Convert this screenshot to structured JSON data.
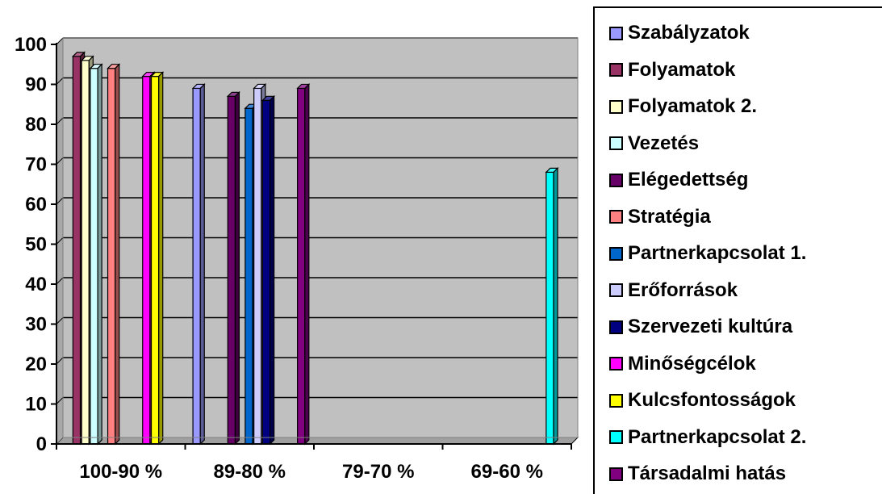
{
  "chart_data": {
    "type": "bar",
    "categories": [
      "100-90 %",
      "89-80 %",
      "79-70 %",
      "69-60 %"
    ],
    "ylim": [
      0,
      100
    ],
    "yticks": [
      0,
      10,
      20,
      30,
      40,
      50,
      60,
      70,
      80,
      90,
      100
    ],
    "grid": true,
    "legend_position": "right",
    "plot_background": "#c0c0c0",
    "series": [
      {
        "name": "Szabályzatok",
        "color": "#9999ff",
        "values": [
          null,
          89,
          null,
          null
        ]
      },
      {
        "name": "Folyamatok",
        "color": "#993366",
        "values": [
          97,
          null,
          null,
          null
        ]
      },
      {
        "name": "Folyamatok 2.",
        "color": "#ffffcc",
        "values": [
          96,
          null,
          null,
          null
        ]
      },
      {
        "name": "Vezetés",
        "color": "#ccffff",
        "values": [
          94,
          null,
          null,
          null
        ]
      },
      {
        "name": "Elégedettség",
        "color": "#660066",
        "values": [
          null,
          87,
          null,
          null
        ]
      },
      {
        "name": "Stratégia",
        "color": "#ff8080",
        "values": [
          94,
          null,
          null,
          null
        ]
      },
      {
        "name": "Partnerkapcsolat 1.",
        "color": "#0066cc",
        "values": [
          null,
          84,
          null,
          null
        ]
      },
      {
        "name": "Erőforrások",
        "color": "#ccccff",
        "values": [
          null,
          89,
          null,
          null
        ]
      },
      {
        "name": "Szervezeti kultúra",
        "color": "#000080",
        "values": [
          null,
          86,
          null,
          null
        ]
      },
      {
        "name": "Minőségcélok",
        "color": "#ff00ff",
        "values": [
          92,
          null,
          null,
          null
        ]
      },
      {
        "name": "Kulcsfontosságok",
        "color": "#ffff00",
        "values": [
          92,
          null,
          null,
          null
        ]
      },
      {
        "name": "Partnerkapcsolat 2.",
        "color": "#00ffff",
        "values": [
          null,
          null,
          null,
          68
        ]
      },
      {
        "name": "Társadalmi hatás",
        "color": "#800080",
        "values": [
          null,
          89,
          null,
          null
        ]
      }
    ]
  }
}
